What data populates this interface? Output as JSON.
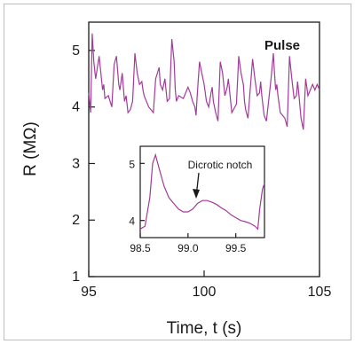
{
  "chart_data": [
    {
      "type": "line",
      "xlabel": "Time, t (s)",
      "ylabel": "R (MΩ)",
      "xlim": [
        95,
        105
      ],
      "ylim": [
        1,
        5.5
      ],
      "x_ticks": [
        "95",
        "100",
        "105"
      ],
      "y_ticks": [
        "1",
        "2",
        "3",
        "4",
        "5"
      ],
      "series": [
        {
          "name": "Pulse",
          "color": "#a23b9a",
          "x": [
            95.0,
            95.08,
            95.15,
            95.22,
            95.3,
            95.45,
            95.6,
            95.65,
            95.7,
            95.85,
            96.0,
            96.1,
            96.2,
            96.3,
            96.35,
            96.45,
            96.55,
            96.62,
            96.7,
            96.8,
            96.9,
            97.0,
            97.1,
            97.2,
            97.3,
            97.35,
            97.4,
            97.5,
            97.6,
            97.8,
            97.9,
            98.05,
            98.1,
            98.2,
            98.3,
            98.4,
            98.5,
            98.6,
            98.7,
            98.75,
            98.8,
            98.9,
            99.1,
            99.3,
            99.4,
            99.5,
            99.6,
            99.65,
            99.7,
            99.8,
            100.0,
            100.1,
            100.2,
            100.3,
            100.35,
            100.4,
            100.5,
            100.6,
            100.7,
            100.8,
            100.9,
            101.0,
            101.05,
            101.1,
            101.2,
            101.4,
            101.5,
            101.6,
            101.7,
            101.75,
            101.8,
            101.9,
            102.1,
            102.2,
            102.3,
            102.4,
            102.45,
            102.5,
            102.6,
            102.7,
            102.9,
            103.0,
            103.05,
            103.1,
            103.15,
            103.2,
            103.3,
            103.5,
            103.6,
            103.7,
            103.8,
            103.9,
            104.0,
            104.05,
            104.1,
            104.2,
            104.3,
            104.4,
            104.45,
            104.5,
            104.7,
            104.8,
            104.9,
            105.0
          ],
          "y": [
            4.25,
            3.9,
            5.3,
            4.8,
            4.5,
            4.9,
            4.3,
            4.4,
            4.15,
            4.2,
            4.0,
            4.75,
            4.9,
            4.4,
            4.3,
            4.6,
            4.1,
            4.2,
            3.9,
            3.95,
            4.1,
            4.95,
            4.6,
            4.4,
            4.45,
            4.3,
            4.2,
            4.1,
            4.0,
            3.9,
            4.5,
            4.7,
            4.4,
            4.3,
            4.5,
            4.1,
            4.15,
            5.2,
            4.8,
            4.3,
            4.1,
            4.2,
            4.15,
            4.35,
            4.25,
            4.1,
            4.0,
            3.85,
            4.2,
            4.8,
            4.4,
            4.1,
            4.0,
            4.25,
            4.35,
            4.1,
            3.9,
            3.75,
            4.8,
            4.6,
            4.2,
            4.35,
            4.5,
            4.3,
            3.9,
            4.05,
            4.9,
            4.6,
            4.4,
            4.1,
            3.95,
            3.8,
            4.85,
            4.5,
            4.2,
            4.25,
            4.45,
            4.2,
            3.85,
            3.75,
            4.5,
            4.95,
            4.6,
            4.3,
            4.4,
            4.2,
            3.9,
            3.8,
            3.65,
            4.9,
            4.5,
            4.15,
            4.2,
            4.45,
            4.25,
            3.8,
            3.6,
            4.5,
            4.35,
            4.2,
            4.4,
            4.3,
            4.4,
            4.3
          ]
        }
      ]
    },
    {
      "type": "line",
      "xlim": [
        98.5,
        99.8
      ],
      "ylim": [
        3.7,
        5.3
      ],
      "x_ticks": [
        "98.5",
        "99.0",
        "99.5"
      ],
      "y_ticks": [
        "4",
        "5"
      ],
      "annotations": [
        {
          "text": "Dicrotic notch",
          "x": 99.0,
          "y": 4.15
        }
      ],
      "series": [
        {
          "color": "#a23b9a",
          "x": [
            98.5,
            98.55,
            98.6,
            98.63,
            98.66,
            98.7,
            98.75,
            98.8,
            98.85,
            98.9,
            98.95,
            99.0,
            99.05,
            99.1,
            99.15,
            99.2,
            99.25,
            99.3,
            99.35,
            99.4,
            99.45,
            99.5,
            99.55,
            99.6,
            99.65,
            99.7,
            99.73,
            99.75,
            99.78,
            99.8
          ],
          "y": [
            3.85,
            3.9,
            4.4,
            5.0,
            5.15,
            4.9,
            4.6,
            4.4,
            4.3,
            4.2,
            4.15,
            4.15,
            4.2,
            4.3,
            4.35,
            4.35,
            4.32,
            4.28,
            4.22,
            4.17,
            4.1,
            4.05,
            4.0,
            3.98,
            3.95,
            3.9,
            3.85,
            4.2,
            4.55,
            4.65
          ]
        }
      ]
    }
  ]
}
